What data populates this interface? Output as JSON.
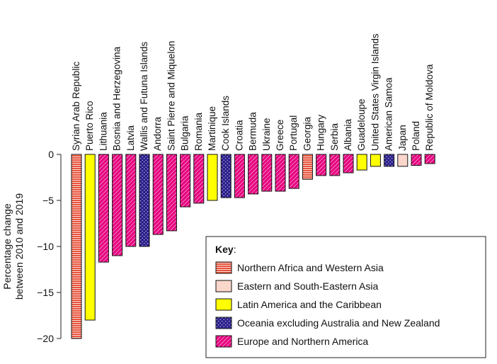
{
  "chart_data": {
    "type": "bar",
    "ylabel": [
      "Percentage change",
      "between 2010 and 2019"
    ],
    "ylim": [
      -20,
      0
    ],
    "yticks": [
      0,
      -5,
      -10,
      -15,
      -20
    ],
    "grid": false,
    "legend": {
      "placement": "bottom-right",
      "title": "Key",
      "title_suffix": ":",
      "entries": [
        {
          "key": "nawa",
          "label": "Northern Africa and Western Asia",
          "color": "#e8523a",
          "pattern": "bricks"
        },
        {
          "key": "esea",
          "label": "Eastern and South-Eastern Asia",
          "color": "#fbd6cb",
          "pattern": "none"
        },
        {
          "key": "lac",
          "label": "Latin America and the Caribbean",
          "color": "#ffff00",
          "pattern": "none"
        },
        {
          "key": "oce",
          "label": "Oceania excluding Australia and New Zealand",
          "color": "#2b1f8c",
          "pattern": "dots"
        },
        {
          "key": "ena",
          "label": "Europe and Northern America",
          "color": "#e6007e",
          "pattern": "diagonal"
        }
      ]
    },
    "categories": [
      {
        "name": "Syrian Arab Republic",
        "value": -20.0,
        "region": "nawa"
      },
      {
        "name": "Puerto Rico",
        "value": -18.0,
        "region": "lac"
      },
      {
        "name": "Lithuania",
        "value": -11.7,
        "region": "ena"
      },
      {
        "name": "Bosnia and Herzegovina",
        "value": -11.0,
        "region": "ena"
      },
      {
        "name": "Latvia",
        "value": -10.0,
        "region": "ena"
      },
      {
        "name": "Wallis and Futuna Islands",
        "value": -10.0,
        "region": "oce"
      },
      {
        "name": "Andorra",
        "value": -8.7,
        "region": "ena"
      },
      {
        "name": "Saint Pierre and Miquelon",
        "value": -8.3,
        "region": "ena"
      },
      {
        "name": "Bulgaria",
        "value": -5.7,
        "region": "ena"
      },
      {
        "name": "Romania",
        "value": -5.3,
        "region": "ena"
      },
      {
        "name": "Martinique",
        "value": -5.0,
        "region": "lac"
      },
      {
        "name": "Cook Islands",
        "value": -4.7,
        "region": "oce"
      },
      {
        "name": "Croatia",
        "value": -4.7,
        "region": "ena"
      },
      {
        "name": "Bermuda",
        "value": -4.3,
        "region": "ena"
      },
      {
        "name": "Ukraine",
        "value": -4.0,
        "region": "ena"
      },
      {
        "name": "Greece",
        "value": -4.0,
        "region": "ena"
      },
      {
        "name": "Portugal",
        "value": -3.7,
        "region": "ena"
      },
      {
        "name": "Georgia",
        "value": -2.7,
        "region": "nawa"
      },
      {
        "name": "Hungary",
        "value": -2.3,
        "region": "ena"
      },
      {
        "name": "Serbia",
        "value": -2.3,
        "region": "ena"
      },
      {
        "name": "Albania",
        "value": -2.0,
        "region": "ena"
      },
      {
        "name": "Guadeloupe",
        "value": -1.7,
        "region": "lac"
      },
      {
        "name": "United States Virgin Islands",
        "value": -1.3,
        "region": "lac"
      },
      {
        "name": "American Samoa",
        "value": -1.3,
        "region": "oce"
      },
      {
        "name": "Japan",
        "value": -1.3,
        "region": "esea"
      },
      {
        "name": "Poland",
        "value": -1.2,
        "region": "ena"
      },
      {
        "name": "Republic of Moldova",
        "value": -1.0,
        "region": "ena"
      }
    ]
  }
}
